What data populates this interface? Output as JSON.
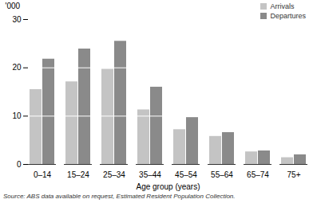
{
  "chart_data": {
    "type": "bar",
    "categories": [
      "0–14",
      "15–24",
      "25–34",
      "35–44",
      "45–54",
      "55–64",
      "65–74",
      "75+"
    ],
    "series": [
      {
        "name": "Arrivals",
        "color": "#c4c4c4",
        "values": [
          15.5,
          17.1,
          19.7,
          11.3,
          7.2,
          5.8,
          2.6,
          1.4
        ]
      },
      {
        "name": "Departures",
        "color": "#8a8a8a",
        "values": [
          21.8,
          23.9,
          25.5,
          16.0,
          9.7,
          6.6,
          2.8,
          2.0
        ]
      }
    ],
    "x_label": "Age group (years)",
    "y_label": "'000",
    "ylim": [
      0,
      30
    ],
    "yticks": [
      0,
      10,
      20,
      30
    ],
    "grid": true,
    "legend": "top-right",
    "annotations": [
      "Source: ABS data available on request, Estimated Resident Population Collection."
    ]
  }
}
